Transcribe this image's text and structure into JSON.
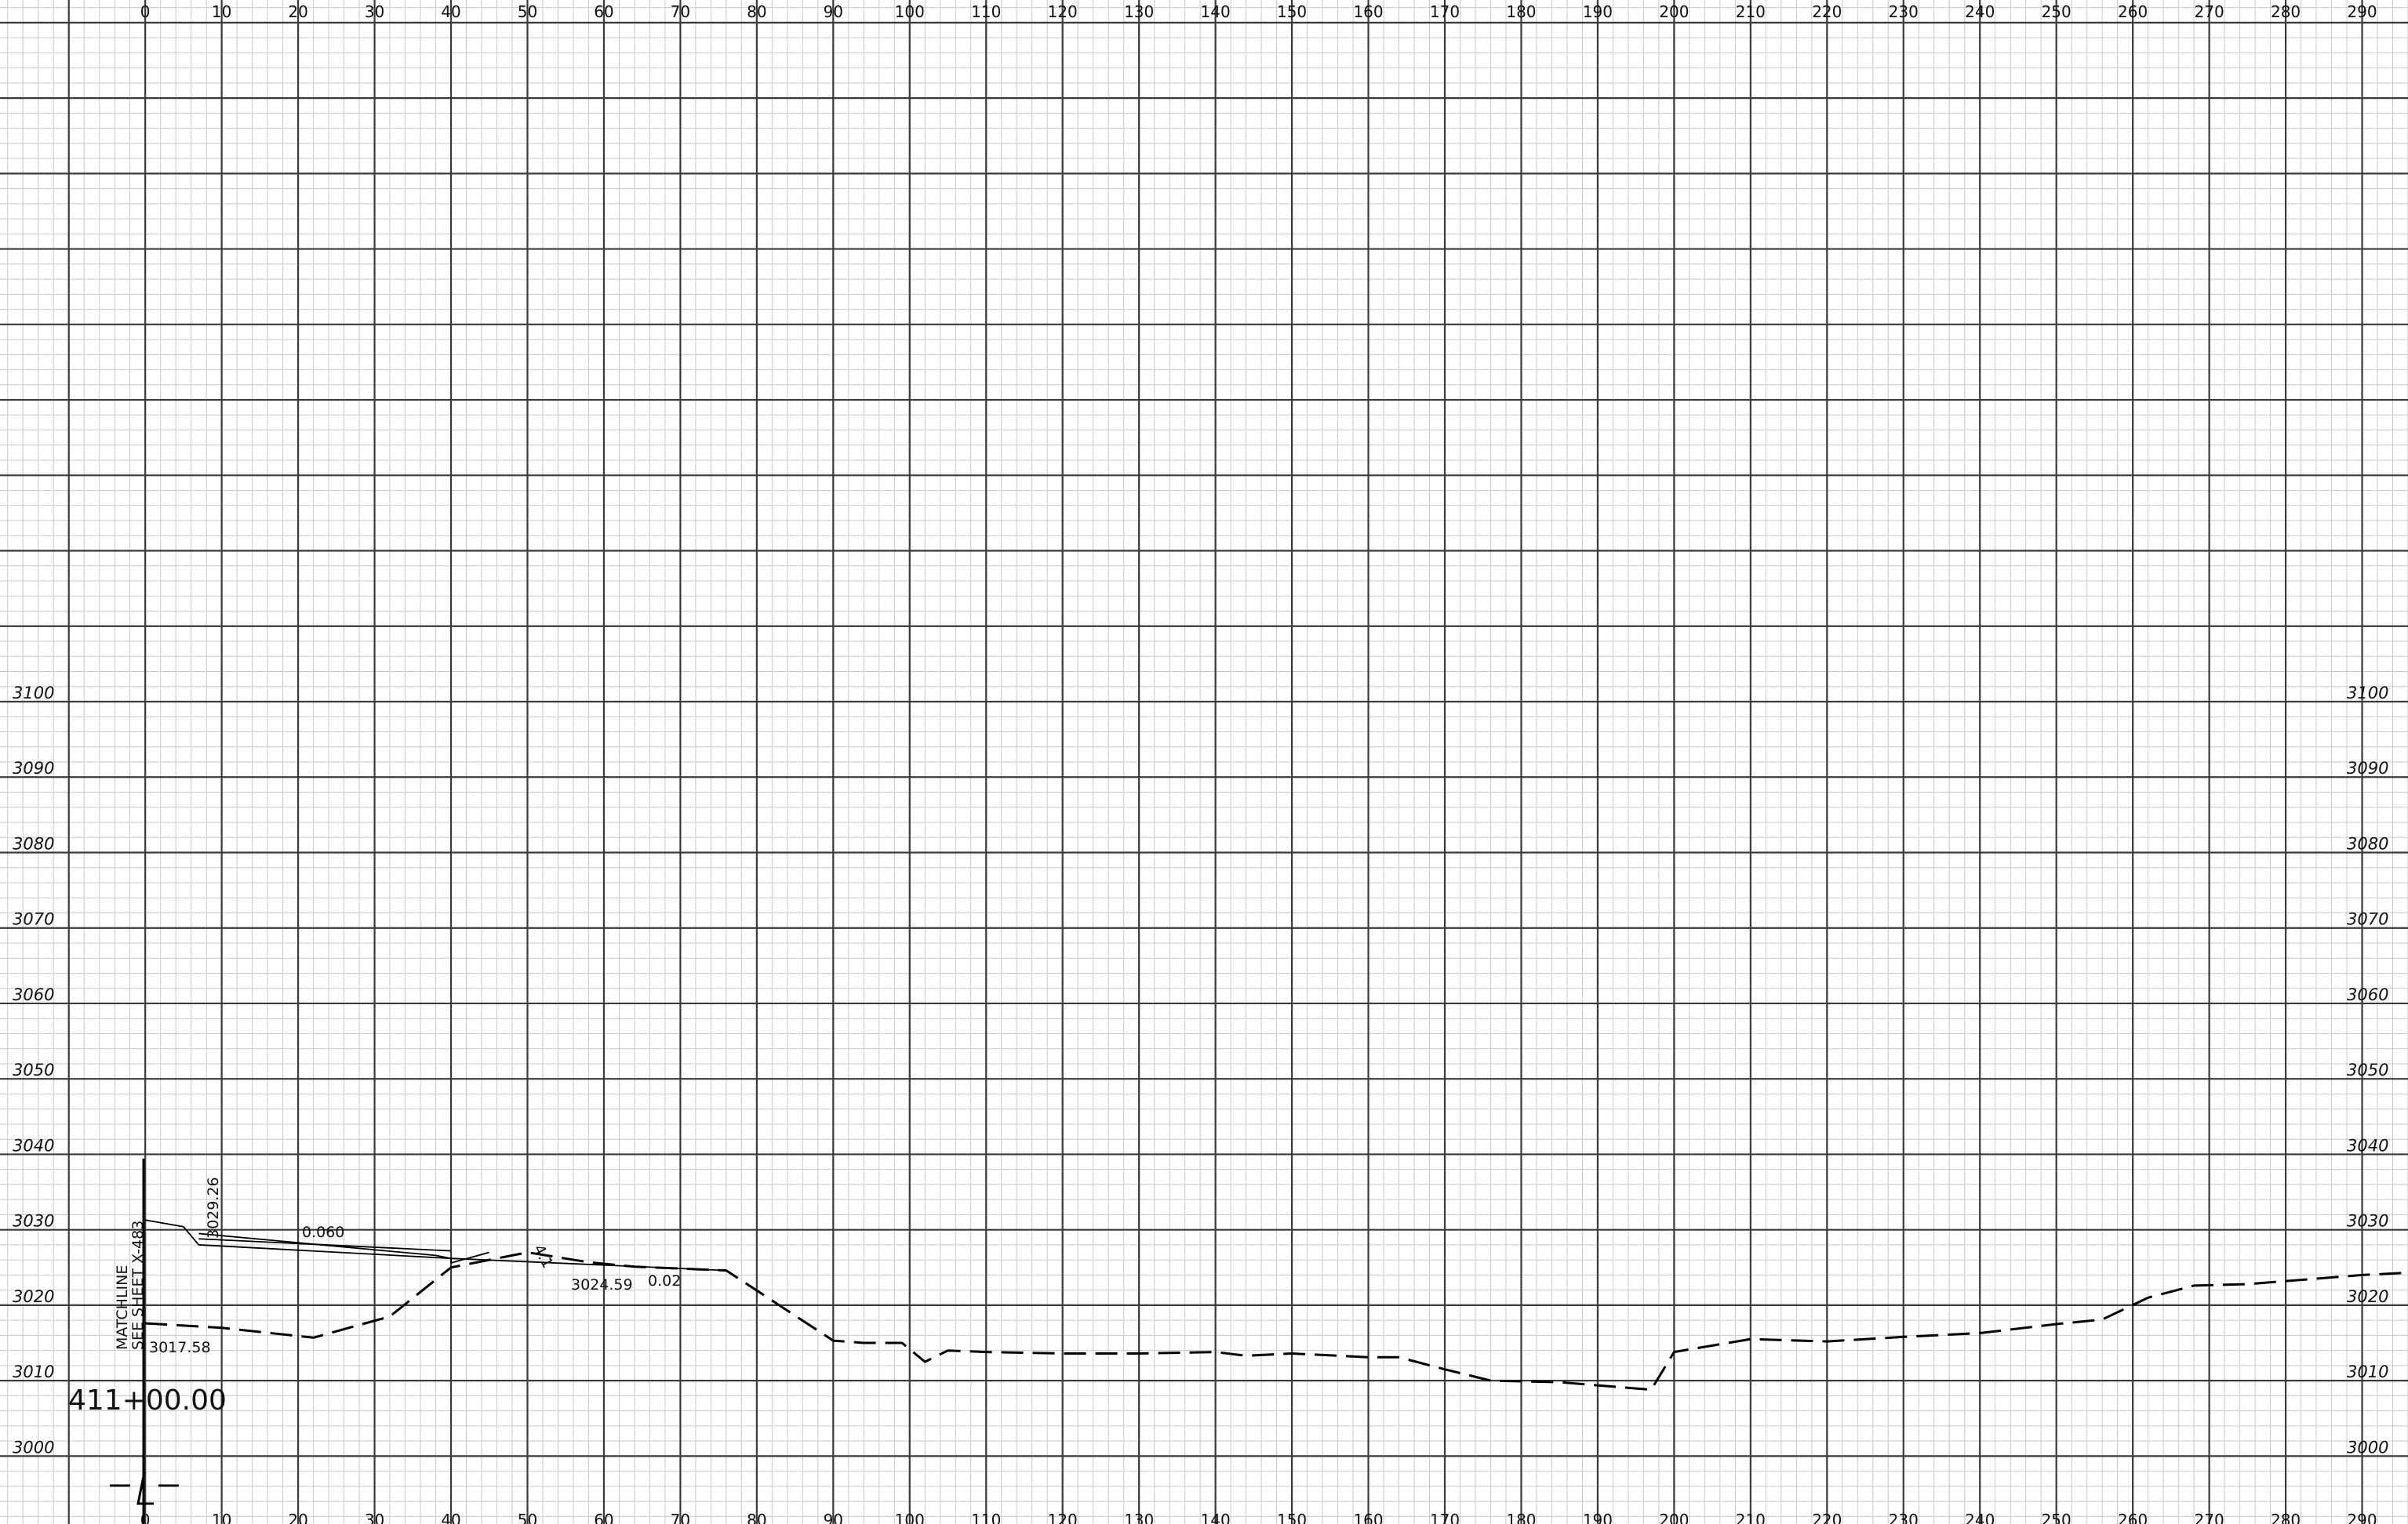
{
  "sheet": {
    "station_label": "411+00.00",
    "matchline_line1": "MATCHLINE",
    "matchline_line2": "SEE SHEET X-483",
    "centerline_symbol": "℄",
    "annotations": {
      "elev_top": "3029.26",
      "slope_main": "0.060",
      "slope_side": "4:1",
      "elev_toe": "3024.59",
      "slope_toe": "0.02",
      "elev_ground": "3017.58"
    }
  },
  "axes": {
    "x_ticks": [
      "0",
      "10",
      "20",
      "30",
      "40",
      "50",
      "60",
      "70",
      "80",
      "90",
      "100",
      "110",
      "120",
      "130",
      "140",
      "150",
      "160",
      "170",
      "180",
      "190",
      "200",
      "210",
      "220",
      "230",
      "240",
      "250",
      "260",
      "270",
      "280",
      "290"
    ],
    "y_ticks": [
      "3000",
      "3010",
      "3020",
      "3030",
      "3040",
      "3050",
      "3060",
      "3070",
      "3080",
      "3090",
      "3100"
    ]
  },
  "chart_data": {
    "type": "line",
    "title": "",
    "xlabel": "",
    "ylabel": "",
    "xlim": [
      -19,
      296
    ],
    "ylim": [
      2991,
      3193
    ],
    "grid": true,
    "series": [
      {
        "style": "dashed",
        "x": [
          0,
          10,
          22,
          32,
          40,
          50,
          58,
          64,
          76,
          90,
          94,
          99,
          102,
          105,
          110,
          120,
          130,
          140,
          144,
          150,
          160,
          164,
          170,
          176,
          185,
          197,
          200,
          210,
          220,
          230,
          240,
          250,
          256,
          262,
          268,
          275,
          290,
          296
        ],
        "y": [
          3017.6,
          3017.0,
          3015.7,
          3018.5,
          3025.0,
          3027.0,
          3025.7,
          3025.1,
          3024.6,
          3015.3,
          3015.0,
          3015.0,
          3012.5,
          3014.0,
          3013.8,
          3013.6,
          3013.6,
          3013.8,
          3013.3,
          3013.6,
          3013.1,
          3013.1,
          3011.5,
          3010.0,
          3009.8,
          3008.8,
          3013.8,
          3015.5,
          3015.2,
          3015.8,
          3016.3,
          3017.5,
          3018.1,
          3021.0,
          3022.6,
          3022.8,
          3024.0,
          3024.3
        ]
      },
      {
        "style": "solid",
        "x": [
          0,
          5,
          7,
          40,
          40,
          45
        ],
        "y": [
          3031.3,
          3030.4,
          3028.0,
          3026.2,
          3025.6,
          3027.0
        ]
      },
      {
        "style": "solid",
        "x": [
          7,
          38,
          40,
          76
        ],
        "y": [
          3029.5,
          3026.6,
          3026.2,
          3024.6
        ]
      },
      {
        "style": "solid",
        "x": [
          7,
          40
        ],
        "y": [
          3028.8,
          3027.2
        ]
      }
    ]
  }
}
